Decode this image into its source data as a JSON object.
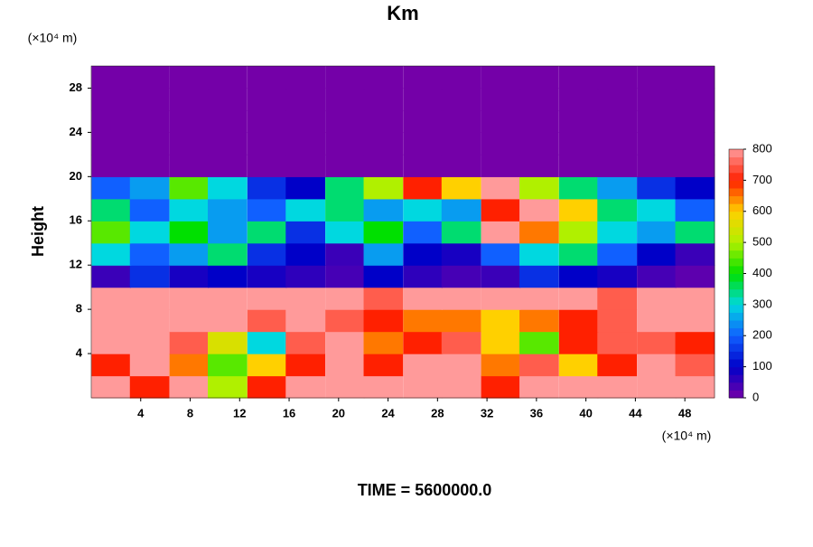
{
  "chart_data": {
    "type": "heatmap",
    "title": "Km",
    "x_label": "(×10⁴ m)",
    "y_label": "Height",
    "y_unit": "(×10⁴ m)",
    "footer": "TIME = 5600000.0",
    "xlim": [
      0,
      50.4
    ],
    "ylim": [
      0,
      30
    ],
    "xticks": [
      4,
      8,
      12,
      16,
      20,
      24,
      28,
      32,
      36,
      40,
      44,
      48
    ],
    "yticks": [
      4,
      8,
      12,
      16,
      20,
      24,
      28
    ],
    "x": [
      1.6,
      4.7,
      7.9,
      11,
      14.2,
      17.3,
      20.5,
      23.6,
      26.8,
      29.9,
      33.1,
      36.2,
      39.4,
      42.5,
      45.7,
      48.8
    ],
    "y": [
      1,
      3,
      5,
      7,
      9,
      11,
      13,
      15,
      17,
      19,
      21,
      23,
      25,
      27,
      29
    ],
    "z": [
      [
        800,
        700,
        800,
        500,
        700,
        800,
        800,
        800,
        800,
        800,
        700,
        800,
        800,
        800,
        800,
        800
      ],
      [
        700,
        800,
        650,
        450,
        600,
        700,
        800,
        700,
        800,
        800,
        650,
        750,
        600,
        700,
        800,
        750
      ],
      [
        800,
        800,
        750,
        550,
        300,
        750,
        800,
        650,
        700,
        750,
        600,
        450,
        700,
        750,
        750,
        700
      ],
      [
        800,
        800,
        800,
        800,
        750,
        800,
        750,
        700,
        650,
        650,
        600,
        650,
        700,
        750,
        800,
        800
      ],
      [
        800,
        800,
        800,
        800,
        800,
        800,
        800,
        750,
        800,
        800,
        800,
        800,
        800,
        750,
        800,
        800
      ],
      [
        50,
        150,
        80,
        100,
        80,
        60,
        40,
        100,
        60,
        40,
        50,
        150,
        100,
        80,
        40,
        20
      ],
      [
        300,
        200,
        250,
        350,
        150,
        100,
        50,
        250,
        100,
        80,
        200,
        300,
        350,
        200,
        100,
        50
      ],
      [
        450,
        300,
        400,
        250,
        350,
        150,
        300,
        400,
        200,
        350,
        800,
        650,
        500,
        300,
        250,
        350
      ],
      [
        350,
        200,
        300,
        250,
        200,
        300,
        350,
        250,
        300,
        250,
        700,
        800,
        600,
        350,
        300,
        200
      ],
      [
        200,
        250,
        450,
        300,
        150,
        100,
        350,
        500,
        700,
        600,
        800,
        500,
        350,
        250,
        150,
        100
      ],
      [
        0,
        0,
        0,
        0,
        0,
        0,
        0,
        0,
        0,
        0,
        0,
        0,
        0,
        0,
        0,
        0
      ],
      [
        0,
        0,
        0,
        0,
        0,
        0,
        0,
        0,
        0,
        0,
        0,
        0,
        0,
        0,
        0,
        0
      ],
      [
        0,
        0,
        0,
        0,
        0,
        0,
        0,
        0,
        0,
        0,
        0,
        0,
        0,
        0,
        0,
        0
      ],
      [
        0,
        0,
        0,
        0,
        0,
        0,
        0,
        0,
        0,
        0,
        0,
        0,
        0,
        0,
        0,
        0
      ],
      [
        0,
        0,
        0,
        0,
        0,
        0,
        0,
        0,
        0,
        0,
        0,
        0,
        0,
        0,
        0,
        0
      ]
    ],
    "zlim": [
      0,
      800
    ],
    "colorbar_ticks": [
      0,
      100,
      200,
      300,
      400,
      500,
      600,
      700,
      800
    ],
    "colors": [
      "#7400a8",
      "#0000c8",
      "#1060ff",
      "#00d8e0",
      "#00e000",
      "#b0f000",
      "#ffd000",
      "#ff2000",
      "#ff9a9a"
    ]
  }
}
